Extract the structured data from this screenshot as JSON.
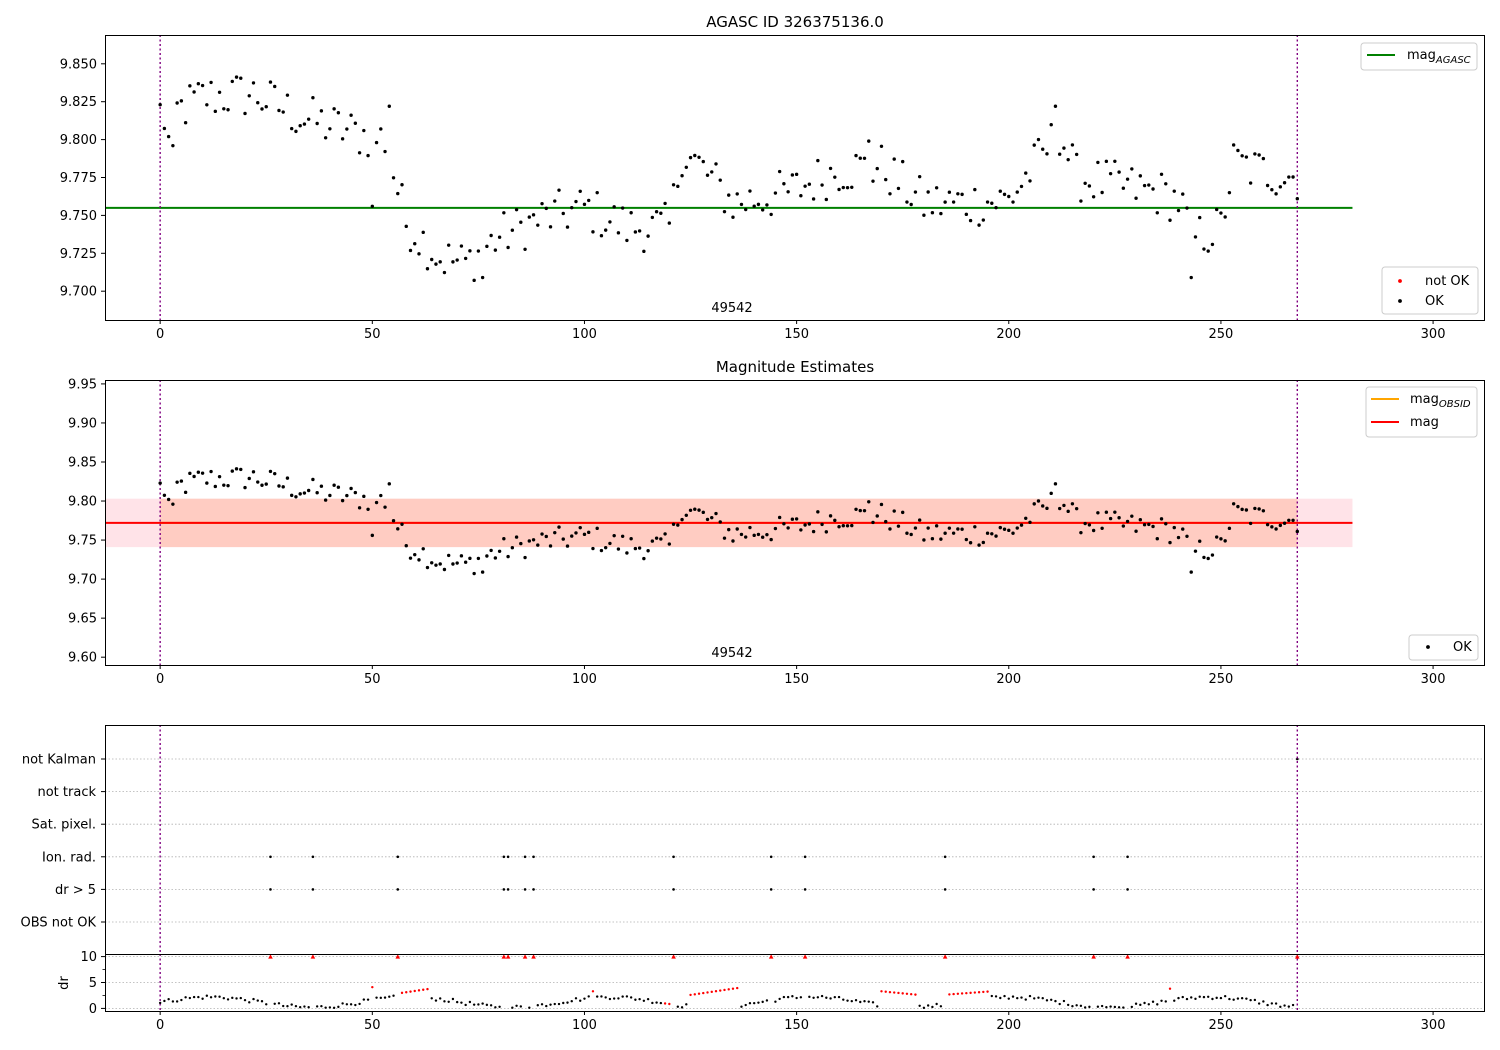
{
  "colors": {
    "ok": "#000000",
    "not_ok": "#ff0000",
    "mag_agasc": "#008000",
    "mag_obsid": "#ffa500",
    "mag": "#ff0000",
    "band_outer": "#ffc0cb",
    "band_inner": "#ffa07a",
    "obsid_line": "#800080",
    "grid": "#b0b0b0"
  },
  "chart_data": [
    {
      "type": "scatter",
      "title": "AGASC ID 326375136.0",
      "xlabel": "",
      "ylabel": "",
      "xlim": [
        -13,
        312
      ],
      "ylim": [
        9.681,
        9.869
      ],
      "xticks": [
        "0",
        "50",
        "100",
        "150",
        "200",
        "250",
        "300"
      ],
      "yticks": [
        "9.700",
        "9.725",
        "9.750",
        "9.775",
        "9.800",
        "9.825",
        "9.850"
      ],
      "obsid_label": "49542",
      "obsid_boundaries": [
        0,
        268
      ],
      "reference_lines": [
        {
          "name": "mag",
          "sub": "AGASC",
          "value": 9.755,
          "x_range": [
            -13,
            281
          ],
          "color": "#008000"
        }
      ],
      "line_legend": [
        {
          "name": "mag",
          "sub": "AGASC",
          "color": "#008000"
        }
      ],
      "marker_legend": [
        {
          "name": "not OK",
          "color": "#ff0000"
        },
        {
          "name": "OK",
          "color": "#000000"
        }
      ],
      "legend_placement": [
        "upper-right",
        "lower-right"
      ],
      "series": [
        {
          "name": "OK",
          "color": "#000000"
        }
      ]
    },
    {
      "type": "scatter",
      "title": "Magnitude Estimates",
      "xlabel": "",
      "ylabel": "",
      "xlim": [
        -13,
        312
      ],
      "ylim": [
        9.59,
        9.955
      ],
      "xticks": [
        "0",
        "50",
        "100",
        "150",
        "200",
        "250",
        "300"
      ],
      "yticks": [
        "9.60",
        "9.65",
        "9.70",
        "9.75",
        "9.80",
        "9.85",
        "9.90",
        "9.95"
      ],
      "obsid_label": "49542",
      "obsid_boundaries": [
        0,
        268
      ],
      "reference_lines": [
        {
          "name": "mag",
          "sub": "OBSID",
          "value": 9.772,
          "x_range": [
            0,
            268
          ],
          "color": "#ffa500"
        },
        {
          "name": "mag",
          "sub": "",
          "value": 9.772,
          "x_range": [
            -13,
            281
          ],
          "color": "#ff0000"
        }
      ],
      "bands": [
        {
          "from": 9.741,
          "to": 9.803,
          "x_range": [
            -13,
            281
          ],
          "color": "#ffc0cb"
        },
        {
          "from": 9.741,
          "to": 9.803,
          "x_range": [
            0,
            268
          ],
          "color": "#ffa07a"
        }
      ],
      "line_legend": [
        {
          "name": "mag",
          "sub": "OBSID",
          "color": "#ffa500"
        },
        {
          "name": "mag",
          "sub": "",
          "color": "#ff0000"
        }
      ],
      "marker_legend": [
        {
          "name": "OK",
          "color": "#000000"
        }
      ],
      "legend_placement": [
        "upper-right",
        "lower-right"
      ],
      "series": [
        {
          "name": "OK",
          "color": "#000000"
        }
      ]
    },
    {
      "type": "scatter",
      "title": "",
      "xlabel": "",
      "ylabel": "",
      "xlim": [
        -13,
        312
      ],
      "flag_labels": [
        "not Kalman",
        "not track",
        "Sat. pixel.",
        "Ion. rad.",
        "dr > 5",
        "OBS not OK"
      ],
      "flag_points": {
        "Ion. rad.": [
          26,
          36,
          56,
          81,
          82,
          86,
          88,
          121,
          144,
          152,
          185,
          220,
          228
        ],
        "dr > 5": [
          26,
          36,
          56,
          81,
          82,
          86,
          88,
          121,
          144,
          152,
          185,
          220,
          228
        ],
        "not Kalman": [
          268
        ]
      },
      "grid": true
    },
    {
      "type": "scatter",
      "title": "",
      "xlabel": "",
      "ylabel": "dr",
      "xlim": [
        -13,
        312
      ],
      "ylim": [
        -0.5,
        10.5
      ],
      "xticks": [
        "0",
        "50",
        "100",
        "150",
        "200",
        "250",
        "300"
      ],
      "yticks": [
        "0",
        "5",
        "10"
      ],
      "clipped_points": [
        26,
        36,
        56,
        81,
        82,
        86,
        88,
        121,
        144,
        152,
        185,
        220,
        228,
        268
      ],
      "grid": true
    }
  ]
}
